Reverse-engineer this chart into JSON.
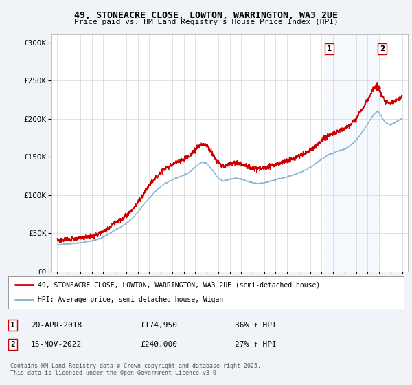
{
  "title": "49, STONEACRE CLOSE, LOWTON, WARRINGTON, WA3 2UE",
  "subtitle": "Price paid vs. HM Land Registry's House Price Index (HPI)",
  "legend_line1": "49, STONEACRE CLOSE, LOWTON, WARRINGTON, WA3 2UE (semi-detached house)",
  "legend_line2": "HPI: Average price, semi-detached house, Wigan",
  "footnote": "Contains HM Land Registry data © Crown copyright and database right 2025.\nThis data is licensed under the Open Government Licence v3.0.",
  "sale1_date_label": "20-APR-2018",
  "sale1_price_label": "£174,950",
  "sale1_hpi_label": "36% ↑ HPI",
  "sale2_date_label": "15-NOV-2022",
  "sale2_price_label": "£240,000",
  "sale2_hpi_label": "27% ↑ HPI",
  "price_line_color": "#cc0000",
  "hpi_line_color": "#7bafd4",
  "vline_color": "#e87878",
  "shade_color": "#ddeeff",
  "marker1_x": 2018.3,
  "marker1_y": 174950,
  "marker2_x": 2022.88,
  "marker2_y": 240000,
  "ylim": [
    0,
    310000
  ],
  "xlim": [
    1994.5,
    2025.5
  ],
  "background_color": "#f0f4f8",
  "plot_bg_color": "#ffffff"
}
